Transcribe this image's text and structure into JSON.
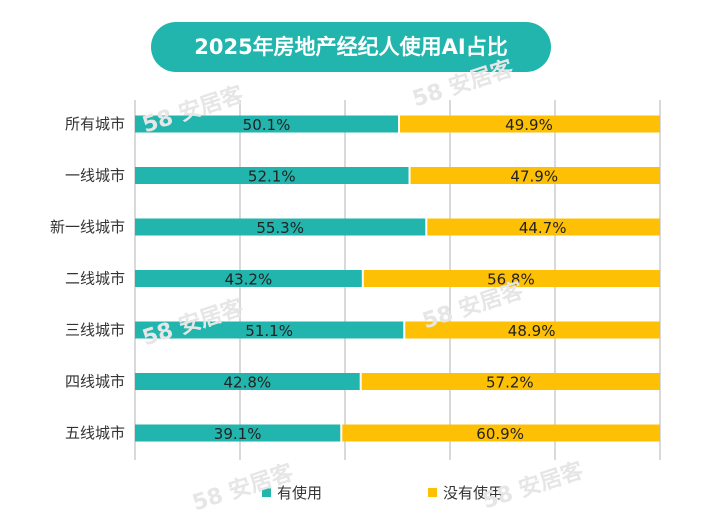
{
  "colors": {
    "used": "#21b5ad",
    "not_used": "#fec005",
    "grid": "#d9d9d9"
  },
  "chart_data": {
    "type": "bar",
    "orientation": "horizontal",
    "stacked": true,
    "title": "2025年房地产经纪人使用AI占比",
    "categories": [
      "所有城市",
      "一线城市",
      "新一线城市",
      "二线城市",
      "三线城市",
      "四线城市",
      "五线城市"
    ],
    "series": [
      {
        "name": "有使用",
        "values": [
          50.1,
          52.1,
          55.3,
          43.2,
          51.1,
          42.8,
          39.1
        ]
      },
      {
        "name": "没有使用",
        "values": [
          49.9,
          47.9,
          44.7,
          56.8,
          48.9,
          57.2,
          60.9
        ]
      }
    ],
    "value_unit": "%",
    "xlim": [
      0,
      100
    ],
    "grid": true,
    "legend_position": "bottom"
  },
  "watermark_text": "58 安居客"
}
